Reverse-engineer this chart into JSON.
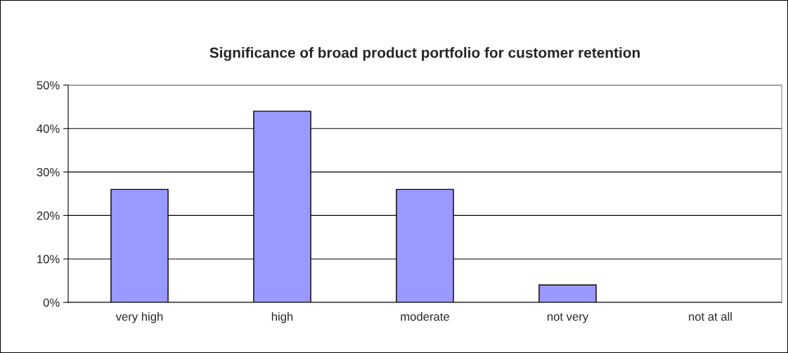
{
  "chart_data": {
    "type": "bar",
    "title": "Significance of broad product portfolio for customer retention",
    "categories": [
      "very high",
      "high",
      "moderate",
      "not very",
      "not at all"
    ],
    "values": [
      26,
      44,
      26,
      4,
      0
    ],
    "color": "#9999ff",
    "ylim": [
      0,
      50
    ],
    "yticks": [
      {
        "value": 0,
        "label": "0%"
      },
      {
        "value": 10,
        "label": "10%"
      },
      {
        "value": 20,
        "label": "20%"
      },
      {
        "value": 30,
        "label": "30%"
      },
      {
        "value": 40,
        "label": "40%"
      },
      {
        "value": 50,
        "label": "50%"
      }
    ],
    "grid": "y",
    "legend": false
  }
}
